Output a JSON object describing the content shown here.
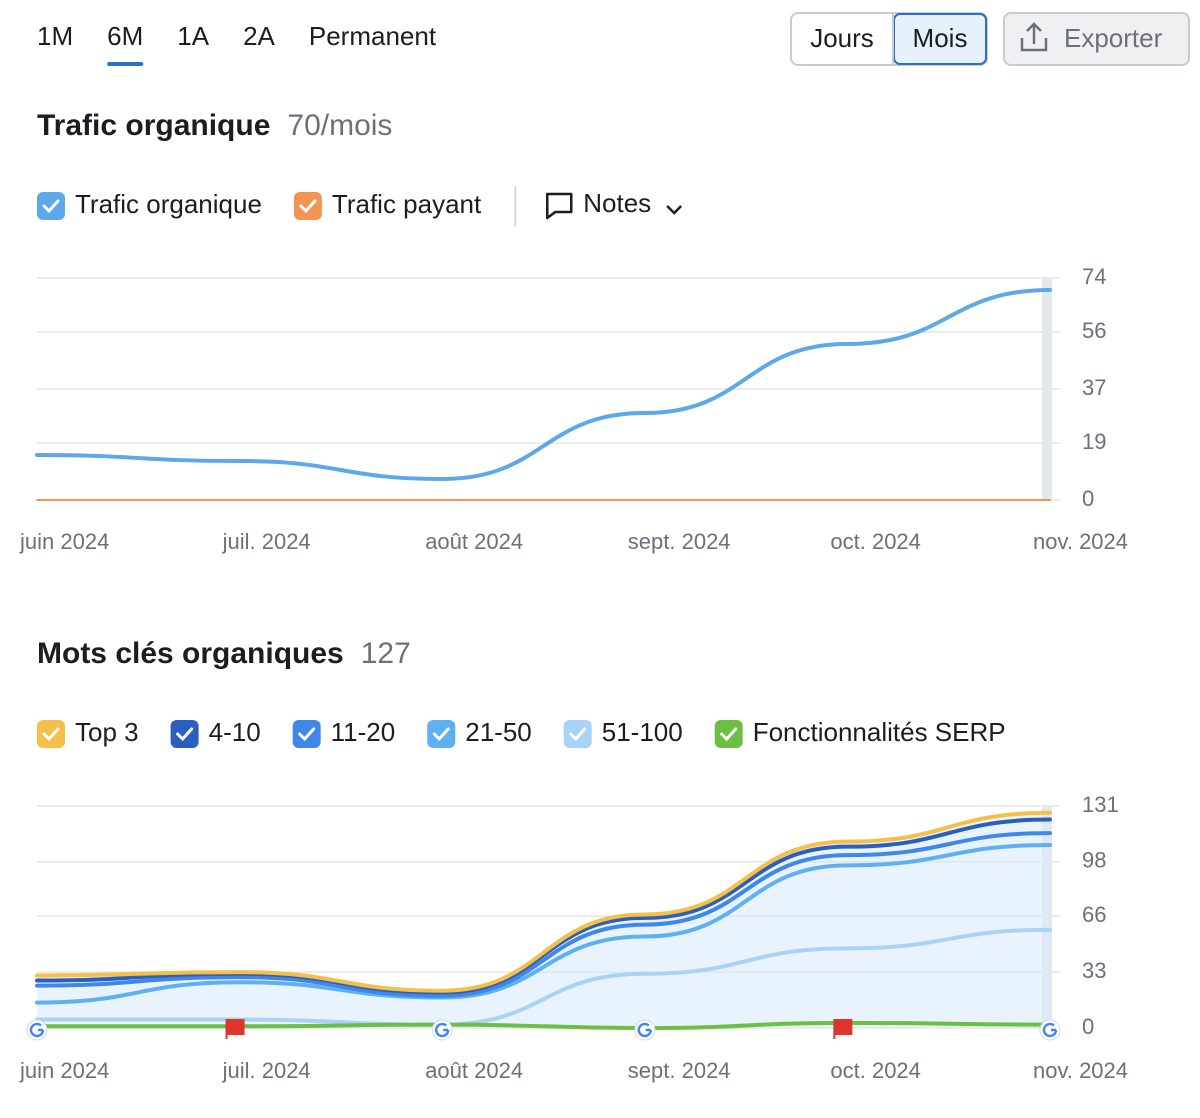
{
  "ui": {
    "periods": [
      "1M",
      "6M",
      "1A",
      "2A",
      "Permanent"
    ],
    "active_period": "6M",
    "granularity": [
      "Jours",
      "Mois"
    ],
    "active_granularity": "Mois",
    "export": "Exporter"
  },
  "chart_data": [
    {
      "type": "line",
      "title": "Trafic organique",
      "subtitle": "70/mois",
      "notes": "Notes",
      "categories": [
        "juin 2024",
        "juil. 2024",
        "août 2024",
        "sept. 2024",
        "oct. 2024",
        "nov. 2024"
      ],
      "series": [
        {
          "name": "Trafic organique",
          "color": "#5ca8ea",
          "values": [
            15,
            13,
            7,
            29,
            52,
            70
          ]
        },
        {
          "name": "Trafic payant",
          "color": "#f39454",
          "values": [
            0,
            0,
            0,
            0,
            0,
            0
          ]
        }
      ],
      "ylim": [
        0,
        74
      ],
      "yticks": [
        0,
        19,
        37,
        56,
        74
      ],
      "grid": true
    },
    {
      "type": "area",
      "stacked": true,
      "title": "Mots clés organiques",
      "subtitle": "127",
      "categories": [
        "juin 2024",
        "juil. 2024",
        "août 2024",
        "sept. 2024",
        "oct. 2024",
        "nov. 2024"
      ],
      "series": [
        {
          "name": "Top 3",
          "color": "#f5c04a",
          "values": [
            3,
            1,
            1,
            2,
            3,
            4
          ]
        },
        {
          "name": "4-10",
          "color": "#2a5fbe",
          "values": [
            3,
            2,
            2,
            4,
            5,
            8
          ]
        },
        {
          "name": "11-20",
          "color": "#3f87e8",
          "values": [
            10,
            3,
            1,
            7,
            6,
            7
          ]
        },
        {
          "name": "21-50",
          "color": "#5fb0f3",
          "values": [
            10,
            22,
            16,
            22,
            49,
            50
          ]
        },
        {
          "name": "51-100",
          "color": "#a7d3f7",
          "values": [
            5,
            5,
            2,
            32,
            47,
            58
          ]
        },
        {
          "name": "Fonctionnalités SERP",
          "color": "#6cbf43",
          "stacked": false,
          "values": [
            1,
            1,
            2,
            0,
            3,
            2
          ]
        }
      ],
      "ylim": [
        0,
        131
      ],
      "yticks": [
        0,
        33,
        66,
        98,
        131
      ],
      "grid": true
    }
  ]
}
